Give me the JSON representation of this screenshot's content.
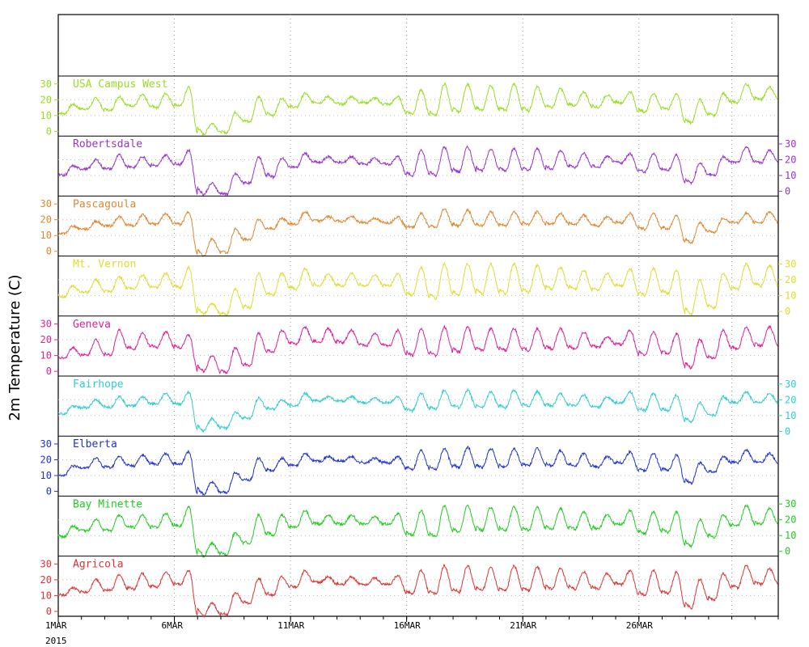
{
  "chart_data": {
    "type": "line",
    "ylabel": "2m Temperature (C)",
    "x_ticks": [
      "1MAR",
      "6MAR",
      "11MAR",
      "16MAR",
      "21MAR",
      "26MAR"
    ],
    "x_year": "2015",
    "x_range_days": [
      0,
      31
    ],
    "panel_ylim": [
      -3,
      35
    ],
    "panel_ticks": [
      0,
      10,
      20,
      30
    ],
    "series": [
      {
        "name": "USA Campus West",
        "color": "#99dd22",
        "axis": "left",
        "daily_min": [
          11,
          14,
          13,
          16,
          15,
          16,
          -2,
          -1,
          6,
          10,
          15,
          18,
          17,
          18,
          17,
          11,
          10,
          12,
          13,
          13,
          13,
          15,
          16,
          15,
          18,
          12,
          14,
          5,
          10,
          18,
          20
        ],
        "daily_max": [
          17,
          21,
          22,
          23,
          24,
          28,
          5,
          12,
          22,
          21,
          24,
          22,
          22,
          21,
          22,
          26,
          30,
          30,
          29,
          30,
          28,
          27,
          25,
          23,
          25,
          24,
          24,
          20,
          24,
          30,
          28
        ]
      },
      {
        "name": "Robertsdale",
        "color": "#9933cc",
        "axis": "right",
        "daily_min": [
          10,
          14,
          14,
          15,
          16,
          17,
          -2,
          -2,
          5,
          9,
          15,
          18,
          18,
          17,
          17,
          10,
          10,
          12,
          13,
          13,
          13,
          14,
          15,
          15,
          18,
          12,
          13,
          5,
          10,
          18,
          18
        ],
        "daily_max": [
          16,
          20,
          23,
          22,
          23,
          26,
          5,
          11,
          22,
          21,
          24,
          22,
          22,
          21,
          22,
          26,
          28,
          28,
          27,
          27,
          27,
          26,
          24,
          22,
          24,
          24,
          23,
          18,
          22,
          28,
          26
        ]
      },
      {
        "name": "Pascagoula",
        "color": "#dd8833",
        "axis": "left",
        "daily_min": [
          11,
          14,
          16,
          16,
          17,
          17,
          -3,
          -1,
          7,
          14,
          17,
          19,
          19,
          18,
          18,
          15,
          15,
          16,
          16,
          16,
          17,
          17,
          17,
          16,
          18,
          14,
          14,
          5,
          12,
          18,
          18
        ],
        "daily_max": [
          16,
          19,
          22,
          23,
          24,
          25,
          8,
          14,
          20,
          21,
          25,
          22,
          22,
          21,
          22,
          24,
          27,
          26,
          25,
          25,
          25,
          24,
          23,
          22,
          24,
          24,
          23,
          18,
          21,
          24,
          25
        ]
      },
      {
        "name": "Mt. Vernon",
        "color": "#dddd33",
        "axis": "right",
        "daily_min": [
          9,
          12,
          12,
          14,
          15,
          15,
          -2,
          -2,
          2,
          10,
          14,
          16,
          16,
          16,
          16,
          10,
          8,
          10,
          11,
          11,
          12,
          14,
          14,
          13,
          16,
          10,
          11,
          -2,
          2,
          14,
          16
        ],
        "daily_max": [
          16,
          20,
          22,
          23,
          24,
          28,
          5,
          14,
          24,
          24,
          27,
          24,
          24,
          23,
          24,
          28,
          30,
          30,
          30,
          30,
          29,
          28,
          26,
          24,
          27,
          27,
          26,
          20,
          24,
          30,
          29
        ]
      },
      {
        "name": "Geneva",
        "color": "#dd2299",
        "axis": "left",
        "daily_min": [
          8,
          10,
          10,
          14,
          15,
          15,
          0,
          -1,
          3,
          12,
          17,
          18,
          18,
          16,
          16,
          10,
          10,
          12,
          13,
          13,
          13,
          14,
          14,
          15,
          17,
          10,
          11,
          2,
          8,
          14,
          16
        ],
        "daily_max": [
          15,
          20,
          26,
          24,
          25,
          23,
          10,
          15,
          24,
          26,
          28,
          27,
          26,
          24,
          26,
          27,
          28,
          28,
          27,
          27,
          27,
          27,
          25,
          22,
          26,
          25,
          24,
          20,
          26,
          28,
          28
        ]
      },
      {
        "name": "Fairhope",
        "color": "#33cccc",
        "axis": "right",
        "daily_min": [
          11,
          15,
          15,
          16,
          17,
          17,
          0,
          2,
          8,
          14,
          16,
          19,
          19,
          18,
          18,
          13,
          14,
          15,
          15,
          15,
          16,
          16,
          16,
          15,
          18,
          13,
          13,
          6,
          10,
          18,
          18
        ],
        "daily_max": [
          16,
          20,
          22,
          22,
          24,
          25,
          8,
          12,
          21,
          20,
          24,
          22,
          22,
          21,
          22,
          24,
          26,
          26,
          25,
          26,
          25,
          24,
          23,
          22,
          25,
          24,
          23,
          18,
          22,
          25,
          24
        ]
      },
      {
        "name": "Elberta",
        "color": "#2233cc",
        "axis": "left",
        "daily_min": [
          10,
          15,
          15,
          16,
          17,
          17,
          -2,
          -1,
          7,
          13,
          16,
          19,
          19,
          18,
          18,
          14,
          14,
          15,
          15,
          15,
          16,
          16,
          16,
          15,
          18,
          13,
          13,
          5,
          12,
          18,
          18
        ],
        "daily_max": [
          16,
          21,
          22,
          23,
          24,
          25,
          6,
          12,
          21,
          21,
          24,
          22,
          22,
          21,
          22,
          26,
          27,
          28,
          27,
          27,
          27,
          26,
          24,
          22,
          25,
          24,
          23,
          18,
          22,
          26,
          24
        ]
      },
      {
        "name": "Bay Minette",
        "color": "#22cc22",
        "axis": "right",
        "daily_min": [
          9,
          13,
          13,
          15,
          15,
          16,
          -3,
          -2,
          5,
          10,
          15,
          17,
          17,
          17,
          17,
          10,
          9,
          12,
          13,
          13,
          13,
          14,
          14,
          14,
          17,
          11,
          12,
          3,
          9,
          16,
          17
        ],
        "daily_max": [
          16,
          20,
          23,
          23,
          24,
          28,
          5,
          12,
          23,
          23,
          26,
          23,
          23,
          22,
          24,
          26,
          29,
          29,
          28,
          28,
          28,
          27,
          25,
          23,
          26,
          25,
          25,
          20,
          23,
          29,
          27
        ]
      },
      {
        "name": "Agricola",
        "color": "#dd3333",
        "axis": "left",
        "daily_min": [
          10,
          12,
          13,
          14,
          15,
          17,
          -3,
          -2,
          5,
          10,
          15,
          18,
          17,
          17,
          17,
          11,
          11,
          12,
          13,
          13,
          13,
          14,
          14,
          14,
          17,
          10,
          11,
          2,
          7,
          15,
          17
        ],
        "daily_max": [
          15,
          20,
          23,
          24,
          25,
          26,
          5,
          12,
          21,
          22,
          26,
          22,
          22,
          21,
          23,
          26,
          29,
          29,
          28,
          29,
          28,
          27,
          25,
          24,
          26,
          26,
          25,
          20,
          24,
          29,
          27
        ]
      }
    ]
  }
}
